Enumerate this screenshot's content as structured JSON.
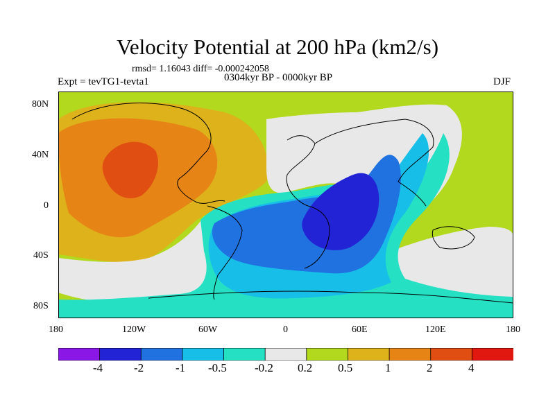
{
  "title": "Velocity Potential at 200 hPa (km2/s)",
  "stats_line": "rmsd= 1.16043  diff= -0.000242058",
  "experiment_line": "Expt = tevTG1-tevta1",
  "period_line": "0304kyr BP - 0000kyr BP",
  "season": "DJF",
  "lat_labels": [
    "80N",
    "40N",
    "0",
    "40S",
    "80S"
  ],
  "lon_labels": [
    "180",
    "120W",
    "60W",
    "0",
    "60E",
    "120E",
    "180"
  ],
  "colorbar": {
    "labels": [
      "-4",
      "-2",
      "-1",
      "-0.5",
      "-0.2",
      "0.2",
      "0.5",
      "1",
      "2",
      "4"
    ],
    "colors": [
      "#8a17e6",
      "#2323d6",
      "#1f72e0",
      "#17bfe8",
      "#25e0c3",
      "#e8e8e8",
      "#b2d91e",
      "#ddb21b",
      "#e68416",
      "#e04e12",
      "#e0180f"
    ]
  }
}
